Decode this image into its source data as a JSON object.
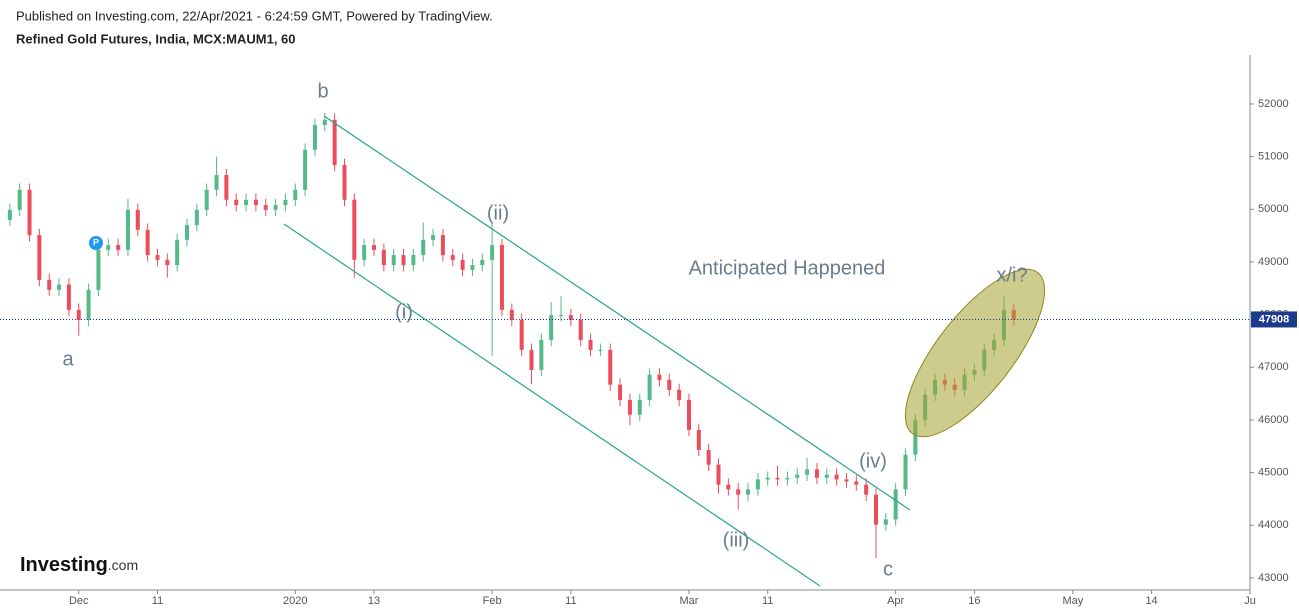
{
  "header": {
    "published": "Published on Investing.com, 22/Apr/2021 - 6:24:59 GMT, Powered by TradingView.",
    "instrument": "Refined Gold Futures, India, MCX:MAUM1, 60"
  },
  "logo": {
    "name": "Investing",
    "suffix": ".com"
  },
  "chart_data": {
    "type": "candlestick",
    "up_color": "#53b987",
    "down_color": "#eb4d5c",
    "grid": false,
    "annotations": {
      "a": "a",
      "b": "b",
      "i": "(i)",
      "ii": "(ii)",
      "iii": "(iii)",
      "iv": "(iv)",
      "c": "c",
      "x": "x/i?",
      "note": "Anticipated Happened"
    },
    "current_price": 47908,
    "current_price_color": "#1d3b8b",
    "xlim": [
      -8,
      119
    ],
    "ylim": [
      42770,
      52930
    ],
    "xticks": [
      {
        "value": 0,
        "label": "Dec"
      },
      {
        "value": 8,
        "label": "11"
      },
      {
        "value": 22,
        "label": "2020"
      },
      {
        "value": 30,
        "label": "13"
      },
      {
        "value": 42,
        "label": "Feb"
      },
      {
        "value": 50,
        "label": "11"
      },
      {
        "value": 62,
        "label": "Mar"
      },
      {
        "value": 70,
        "label": "11"
      },
      {
        "value": 83,
        "label": "Apr"
      },
      {
        "value": 91,
        "label": "16"
      },
      {
        "value": 101,
        "label": "May"
      },
      {
        "value": 109,
        "label": "14"
      },
      {
        "value": 119,
        "label": "Ju"
      }
    ],
    "yticks": [
      43000,
      44000,
      45000,
      46000,
      47000,
      48000,
      49000,
      50000,
      51000,
      52000
    ],
    "x": [
      -7,
      -6,
      -5,
      -4,
      -3,
      -2,
      -1,
      0,
      1,
      2,
      3,
      4,
      5,
      6,
      7,
      8,
      9,
      10,
      11,
      12,
      13,
      14,
      15,
      16,
      17,
      18,
      19,
      20,
      21,
      22,
      23,
      24,
      25,
      26,
      27,
      28,
      29,
      30,
      31,
      32,
      33,
      34,
      35,
      36,
      37,
      38,
      39,
      40,
      41,
      42,
      43,
      44,
      45,
      46,
      47,
      48,
      49,
      50,
      51,
      52,
      53,
      54,
      55,
      56,
      57,
      58,
      59,
      60,
      61,
      62,
      63,
      64,
      65,
      66,
      67,
      68,
      69,
      70,
      71,
      72,
      73,
      74,
      75,
      76,
      77,
      78,
      79,
      80,
      81,
      82,
      83,
      84,
      85,
      86,
      87,
      88,
      89,
      90,
      91,
      92,
      93,
      94,
      95
    ],
    "open": [
      49800,
      49990,
      50370,
      49510,
      48660,
      48470,
      48570,
      48090,
      47900,
      48470,
      49230,
      49320,
      49230,
      49990,
      49610,
      49130,
      49040,
      48940,
      49420,
      49700,
      49990,
      50370,
      50650,
      50180,
      50080,
      50180,
      50080,
      49990,
      50080,
      50180,
      50370,
      51130,
      51600,
      51700,
      50840,
      50180,
      49040,
      49320,
      49230,
      48940,
      49130,
      48940,
      49130,
      49420,
      49510,
      49130,
      49040,
      48850,
      48940,
      49040,
      49320,
      48090,
      47900,
      47330,
      46950,
      47520,
      47990,
      47990,
      47900,
      47520,
      47330,
      47330,
      46670,
      46380,
      46100,
      46380,
      46860,
      46760,
      46570,
      46380,
      45810,
      45430,
      45150,
      44770,
      44680,
      44580,
      44680,
      44870,
      44900,
      44870,
      44900,
      44960,
      45060,
      44900,
      44960,
      44870,
      44830,
      44770,
      44580,
      44010,
      44110,
      44680,
      45340,
      46000,
      46480,
      46760,
      46670,
      46570,
      46860,
      46950,
      47330,
      47520,
      48090
    ],
    "high": [
      50110,
      50490,
      50490,
      49630,
      48780,
      48690,
      48690,
      48210,
      48590,
      49350,
      49440,
      49440,
      50200,
      50110,
      49730,
      49250,
      49160,
      49540,
      49820,
      50110,
      50490,
      51000,
      50770,
      50300,
      50300,
      50300,
      50200,
      50200,
      50300,
      50490,
      51250,
      51720,
      51830,
      51820,
      50960,
      50300,
      49440,
      49440,
      49350,
      49250,
      49250,
      49250,
      49750,
      49630,
      49630,
      49250,
      49160,
      49060,
      49160,
      49750,
      49440,
      48210,
      48020,
      47450,
      47640,
      48240,
      48350,
      48110,
      48020,
      47640,
      47450,
      47450,
      46790,
      46500,
      46500,
      46980,
      46980,
      46880,
      46690,
      46500,
      45930,
      45550,
      45270,
      44890,
      44800,
      44800,
      44990,
      45020,
      45130,
      45020,
      45080,
      45280,
      45180,
      45080,
      45080,
      44990,
      44950,
      44890,
      44700,
      44230,
      44800,
      45460,
      46120,
      46600,
      46880,
      46880,
      46790,
      46980,
      47070,
      47450,
      47640,
      48350,
      48210
    ],
    "low": [
      49680,
      49870,
      49390,
      48540,
      48350,
      48350,
      47970,
      47600,
      47780,
      48350,
      49110,
      49110,
      49110,
      49490,
      49010,
      48920,
      48700,
      48820,
      49300,
      49580,
      49870,
      50250,
      50060,
      49960,
      49960,
      49960,
      49870,
      49870,
      49960,
      50060,
      50250,
      51010,
      51480,
      50720,
      50060,
      48700,
      48920,
      49110,
      48820,
      48820,
      48820,
      48820,
      49010,
      49300,
      49010,
      48920,
      48730,
      48730,
      48820,
      47220,
      47970,
      47780,
      47210,
      46680,
      46830,
      47400,
      47870,
      47780,
      47400,
      47210,
      47210,
      46550,
      46260,
      45900,
      45980,
      46260,
      46640,
      46450,
      46260,
      45690,
      45310,
      45030,
      44600,
      44560,
      44300,
      44460,
      44560,
      44750,
      44750,
      44750,
      44780,
      44840,
      44780,
      44780,
      44750,
      44710,
      44650,
      44460,
      43380,
      43890,
      43990,
      44560,
      45220,
      45880,
      46360,
      46550,
      46450,
      46450,
      46740,
      46830,
      47210,
      47400,
      47790
    ],
    "close": [
      49990,
      50370,
      49510,
      48660,
      48470,
      48570,
      48090,
      47900,
      48470,
      49230,
      49320,
      49230,
      49990,
      49610,
      49130,
      49040,
      48940,
      49420,
      49700,
      49990,
      50370,
      50650,
      50180,
      50080,
      50180,
      50080,
      49990,
      50080,
      50180,
      50370,
      51130,
      51600,
      51700,
      50840,
      50180,
      49040,
      49320,
      49230,
      48940,
      49130,
      48940,
      49130,
      49420,
      49510,
      49130,
      49040,
      48850,
      48940,
      49040,
      49320,
      48090,
      47900,
      47330,
      46950,
      47520,
      47990,
      47990,
      47900,
      47520,
      47330,
      47330,
      46670,
      46380,
      46100,
      46380,
      46860,
      46760,
      46570,
      46380,
      45810,
      45430,
      45150,
      44770,
      44680,
      44580,
      44680,
      44870,
      44900,
      44870,
      44900,
      44960,
      45060,
      44900,
      44960,
      44870,
      44830,
      44770,
      44580,
      44010,
      44110,
      44680,
      45340,
      46000,
      46480,
      46760,
      46670,
      46570,
      46860,
      46950,
      47330,
      47520,
      48090,
      47908
    ]
  }
}
